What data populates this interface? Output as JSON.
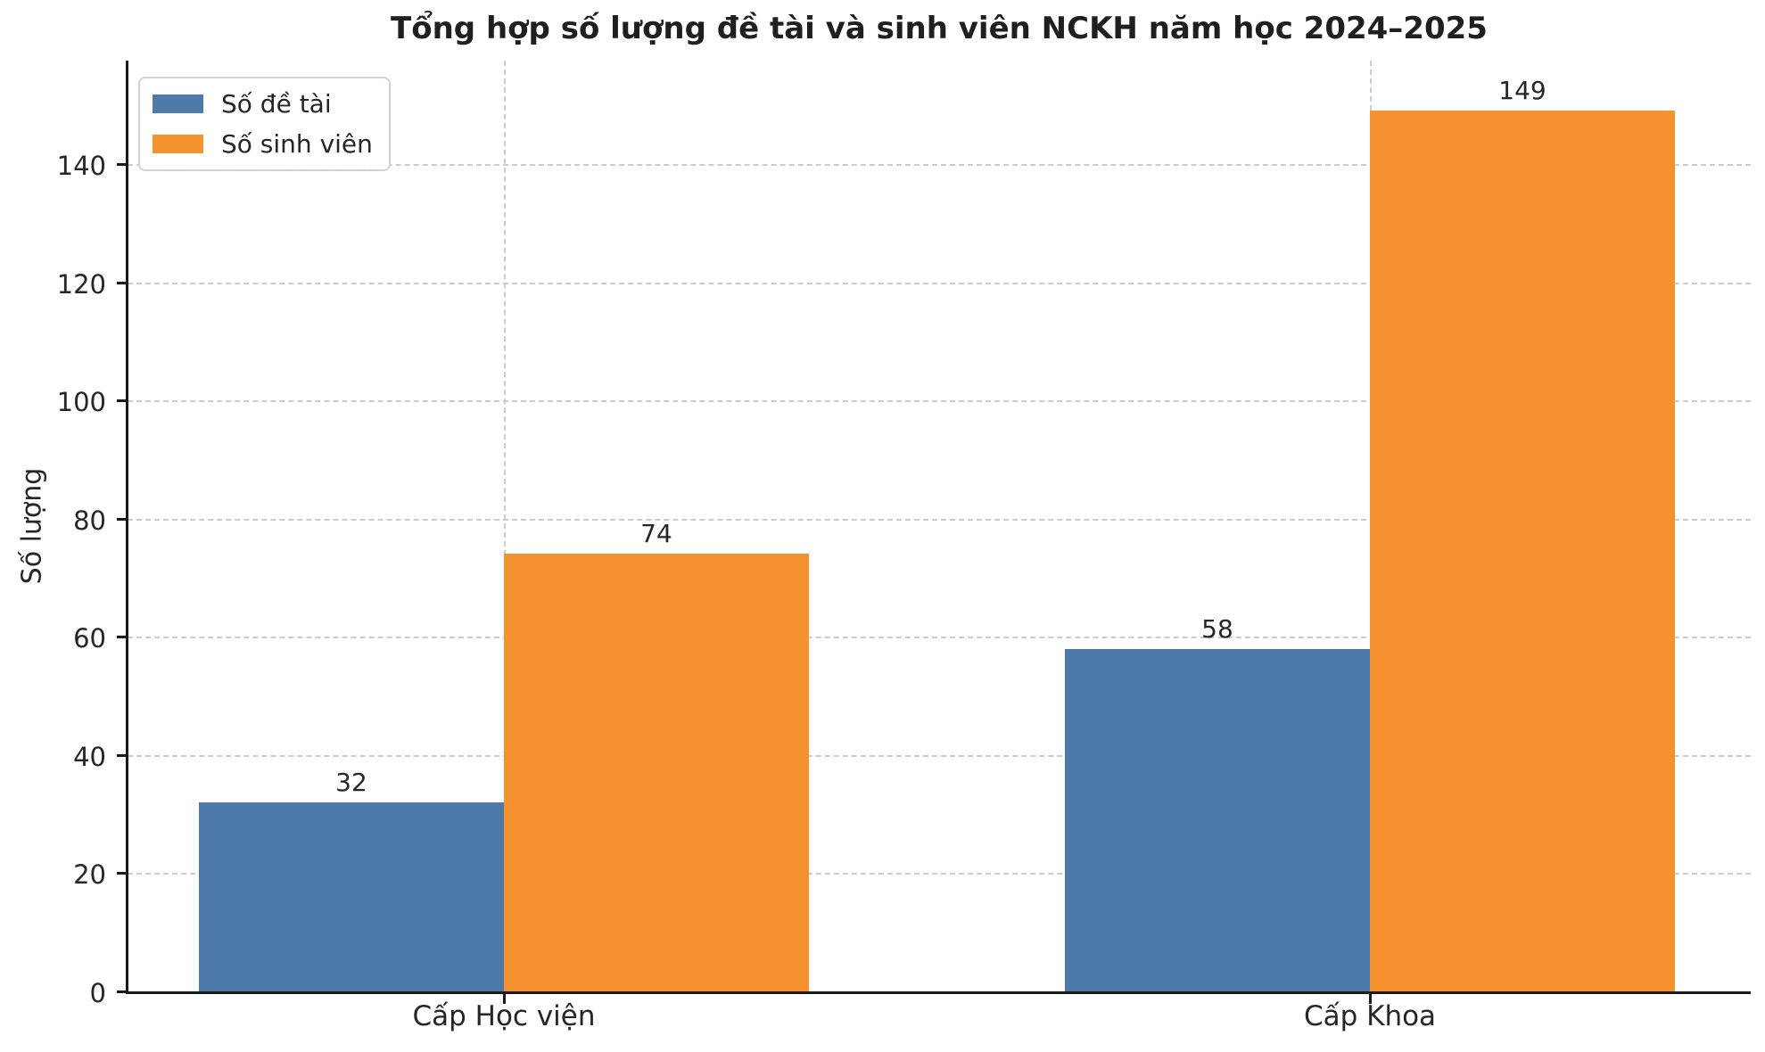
{
  "chart_data": {
    "type": "bar",
    "title": "Tổng hợp số lượng đề tài và sinh viên NCKH năm học 2024–2025",
    "categories": [
      "Cấp Học viện",
      "Cấp Khoa"
    ],
    "series": [
      {
        "name": "Số đề tài",
        "color": "#4D7AA8",
        "values": [
          32,
          58
        ]
      },
      {
        "name": "Số sinh viên",
        "color": "#F3922E",
        "values": [
          74,
          149
        ]
      }
    ],
    "xlabel": "",
    "ylabel": "Số lượng",
    "yticks": [
      0,
      20,
      40,
      60,
      80,
      100,
      120,
      140
    ],
    "ylim": [
      0,
      157.5
    ],
    "grid": {
      "horizontal_dashed": true,
      "vertical_dashed_at_category_centers": true,
      "color": "#cccccc"
    },
    "legend": {
      "position": "upper-left",
      "entries": [
        "Số đề tài",
        "Số sinh viên"
      ]
    },
    "value_labels_shown": true
  },
  "colors": {
    "background": "#ffffff",
    "bar_blue": "#4D7AA8",
    "bar_orange": "#F3922E",
    "spine": "#1a1a1a",
    "grid": "#cccccc",
    "text": "#262626"
  }
}
